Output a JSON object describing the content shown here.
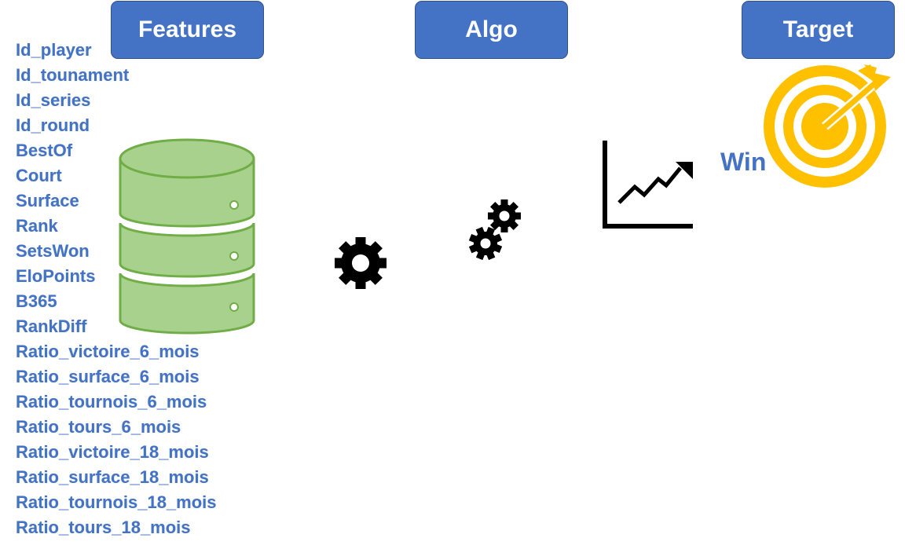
{
  "headers": {
    "features": "Features",
    "algo": "Algo",
    "target": "Target"
  },
  "features": [
    "Id_player",
    "Id_tounament",
    "Id_series",
    "Id_round",
    "BestOf",
    "Court",
    "Surface",
    "Rank",
    "SetsWon",
    "EloPoints",
    "B365",
    "RankDiff",
    "Ratio_victoire_6_mois",
    "Ratio_surface_6_mois",
    "Ratio_tournois_6_mois",
    "Ratio_tours_6_mois",
    "Ratio_victoire_18_mois",
    "Ratio_surface_18_mois",
    "Ratio_tournois_18_mois",
    "Ratio_tours_18_mois"
  ],
  "target_label": "Win",
  "icons": {
    "database": "database-icon",
    "gear": "gear-icon",
    "gears": "gears-icon",
    "chart": "line-chart-icon",
    "target": "target-icon"
  },
  "colors": {
    "header_fill": "#4472c4",
    "text_blue": "#4472c4",
    "database_fill": "#a9d18e",
    "database_stroke": "#70ad47",
    "target_gold": "#ffc000"
  }
}
